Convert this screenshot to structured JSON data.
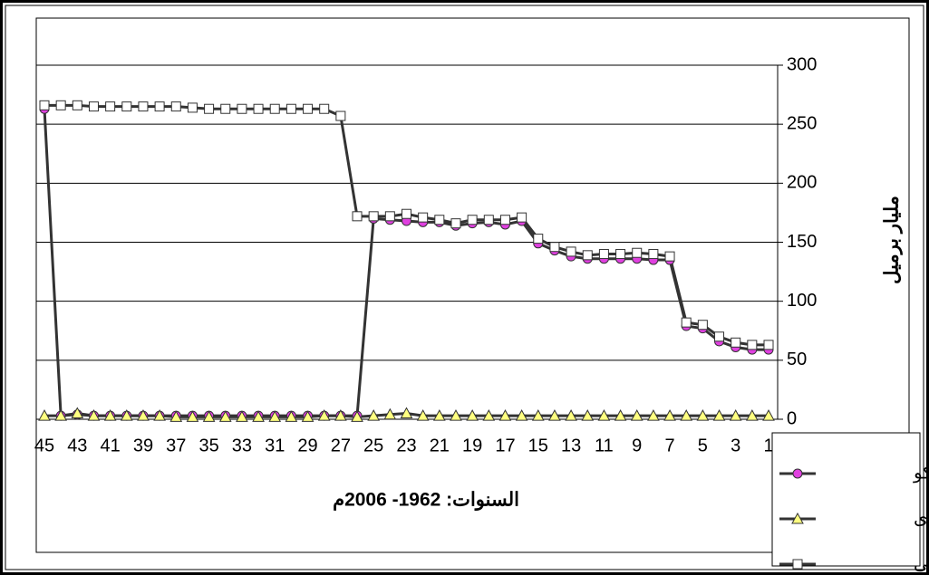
{
  "chart_data": {
    "type": "line",
    "y_axis_label": "مليار برميل",
    "x_axis_label": "السنوات: 1962- 2006م",
    "categories": [
      "45",
      null,
      "43",
      null,
      "41",
      null,
      "39",
      null,
      "37",
      null,
      "35",
      null,
      "33",
      null,
      "31",
      null,
      "29",
      null,
      "27",
      null,
      "25",
      null,
      "23",
      null,
      "21",
      null,
      "19",
      null,
      "17",
      null,
      "15",
      null,
      "13",
      null,
      "11",
      null,
      "9",
      null,
      "7",
      null,
      "5",
      null,
      "3",
      null,
      "1"
    ],
    "series": [
      {
        "name": "أرامكو",
        "color": "#e040e0",
        "marker": "circle",
        "values": [
          263,
          3,
          4,
          3,
          3,
          3,
          3,
          3,
          3,
          3,
          3,
          3,
          3,
          3,
          3,
          3,
          3,
          3,
          3,
          3,
          170,
          169,
          168,
          167,
          167,
          164,
          166,
          167,
          165,
          168,
          149,
          143,
          138,
          136,
          136,
          136,
          136,
          135,
          135,
          79,
          77,
          66,
          61,
          59,
          59
        ]
      },
      {
        "name": "أخرى",
        "color": "#ffff80",
        "marker": "triangle",
        "values": [
          3,
          3,
          5,
          3,
          3,
          3,
          3,
          3,
          2,
          2,
          2,
          2,
          2,
          2,
          2,
          2,
          2,
          3,
          3,
          2,
          3,
          4,
          5,
          3,
          3,
          3,
          3,
          3,
          3,
          3,
          3,
          3,
          3,
          3,
          3,
          3,
          3,
          3,
          3,
          3,
          3,
          3,
          3,
          3,
          3
        ]
      },
      {
        "name": "الاجمالي",
        "color": "#ffffff",
        "marker": "square",
        "values": [
          266,
          266,
          266,
          265,
          265,
          265,
          265,
          265,
          265,
          264,
          263,
          263,
          263,
          263,
          263,
          263,
          263,
          263,
          257,
          172,
          172,
          172,
          174,
          171,
          169,
          166,
          169,
          169,
          169,
          171,
          153,
          146,
          142,
          139,
          140,
          140,
          141,
          140,
          138,
          82,
          80,
          70,
          65,
          63,
          63
        ]
      }
    ],
    "line_color": "#333333",
    "ylim": [
      0,
      300
    ],
    "yticks": [
      0,
      50,
      100,
      150,
      200,
      250,
      300
    ],
    "grid": true,
    "y_axis_side": "right",
    "legend": "bottom-right"
  }
}
